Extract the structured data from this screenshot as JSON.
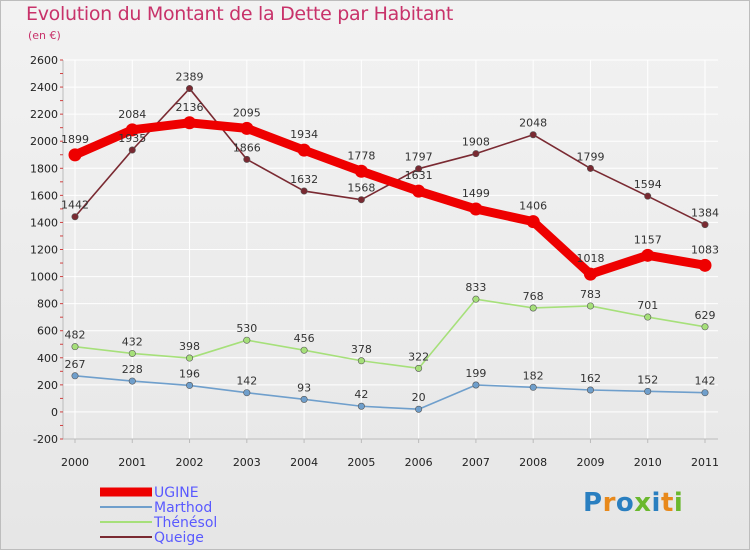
{
  "title": "Evolution du Montant de la Dette par Habitant",
  "subtitle": "(en €)",
  "logo_text": "Proxiti",
  "colors": {
    "title": "#c8326a",
    "grid": "#ffffff",
    "axis": "#bbbbbb",
    "logo_letters": [
      "#2a7fc0",
      "#e8891b",
      "#2a7fc0",
      "#6ab82e",
      "#2a7fc0",
      "#e8891b",
      "#6ab82e"
    ]
  },
  "chart_data": {
    "type": "line",
    "title": "Evolution du Montant de la Dette par Habitant",
    "subtitle": "(en €)",
    "x": [
      "2000",
      "2001",
      "2002",
      "2003",
      "2004",
      "2005",
      "2006",
      "2007",
      "2008",
      "2009",
      "2010",
      "2011"
    ],
    "ylim": [
      -200,
      2600
    ],
    "yticks": [
      -200,
      0,
      200,
      400,
      600,
      800,
      1000,
      1200,
      1400,
      1600,
      1800,
      2000,
      2200,
      2400,
      2600
    ],
    "grid": true,
    "legend_position": "bottom-left",
    "series": [
      {
        "name": "UGINE",
        "color": "#ee0000",
        "legend_color": "#5a5aff",
        "emphasis": true,
        "values": [
          1899,
          2084,
          2136,
          2095,
          1934,
          1778,
          1631,
          1499,
          1406,
          1018,
          1157,
          1083
        ]
      },
      {
        "name": "Marthod",
        "color": "#6f9fcc",
        "legend_color": "#5a5aff",
        "emphasis": false,
        "values": [
          267,
          228,
          196,
          142,
          93,
          42,
          20,
          199,
          182,
          162,
          152,
          142
        ]
      },
      {
        "name": "Thénésol",
        "color": "#a6e07a",
        "legend_color": "#5a5aff",
        "emphasis": false,
        "values": [
          482,
          432,
          398,
          530,
          456,
          378,
          322,
          833,
          768,
          783,
          701,
          629
        ]
      },
      {
        "name": "Queige",
        "color": "#7a2a32",
        "legend_color": "#5a5aff",
        "emphasis": false,
        "values": [
          1442,
          1935,
          2389,
          1866,
          1632,
          1568,
          1797,
          1908,
          2048,
          1799,
          1594,
          1384
        ]
      }
    ]
  }
}
